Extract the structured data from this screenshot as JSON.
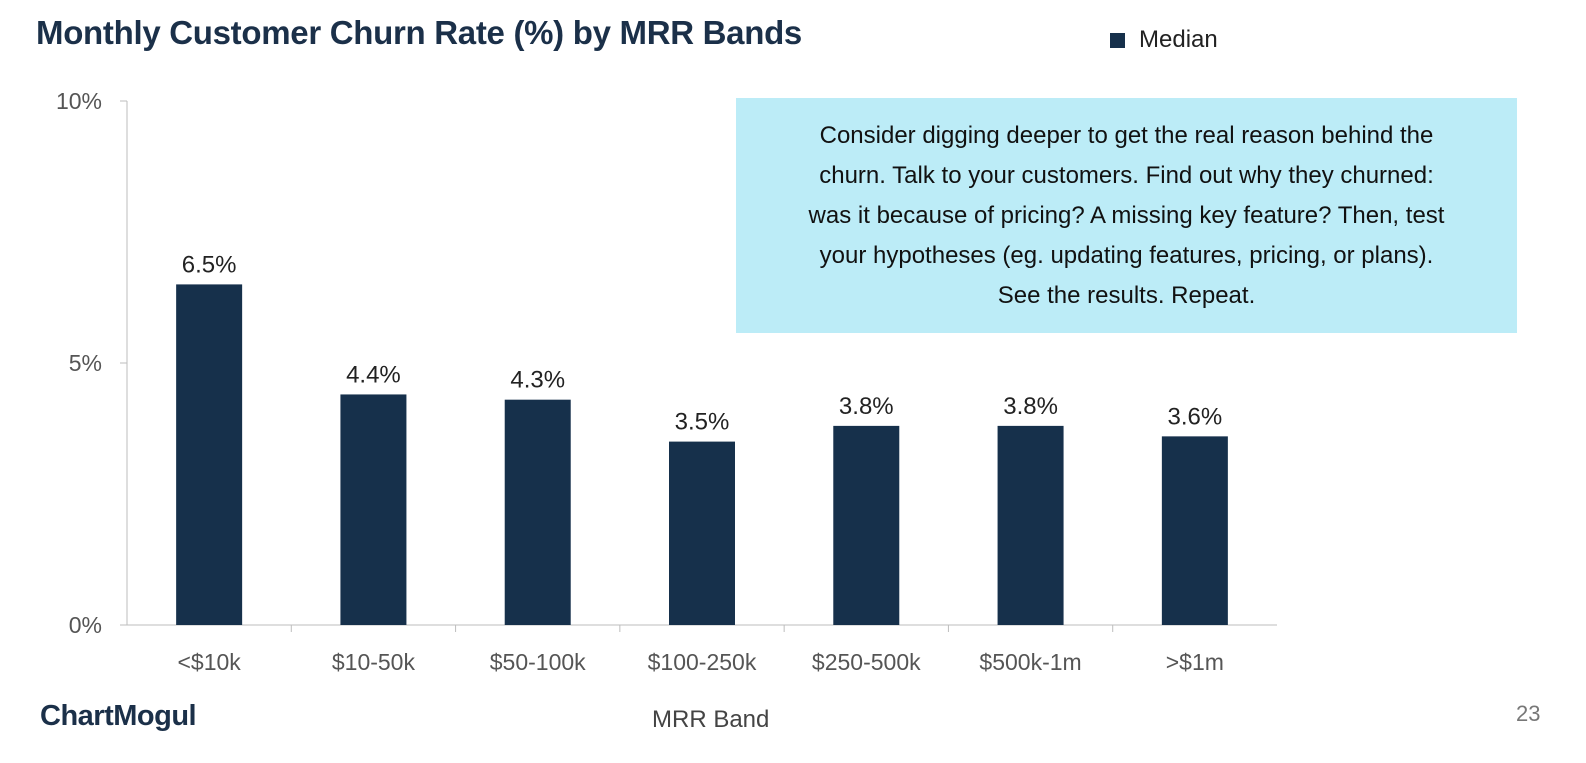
{
  "title": "Monthly Customer Churn Rate (%) by MRR Bands",
  "legend": {
    "label": "Median"
  },
  "callout": {
    "text": "Consider digging deeper to get the real reason behind the churn. Talk to your customers. Find out why they churned: was it because of pricing? A missing key feature? Then, test your hypotheses (eg. updating features, pricing, or plans). See the results. Repeat."
  },
  "brand": "ChartMogul",
  "page_number": "23",
  "colors": {
    "bar": "#16304b",
    "callout_bg": "#bcecf7",
    "title": "#1b3049"
  },
  "chart_data": {
    "type": "bar",
    "title": "Monthly Customer Churn Rate (%) by MRR Bands",
    "xlabel": "MRR Band",
    "ylabel": "",
    "categories": [
      "<$10k",
      "$10-50k",
      "$50-100k",
      "$100-250k",
      "$250-500k",
      "$500k-1m",
      ">$1m"
    ],
    "series": [
      {
        "name": "Median",
        "values": [
          6.5,
          4.4,
          4.3,
          3.5,
          3.8,
          3.8,
          3.6
        ]
      }
    ],
    "data_labels": [
      "6.5%",
      "4.4%",
      "4.3%",
      "3.5%",
      "3.8%",
      "3.8%",
      "3.6%"
    ],
    "ylim": [
      0,
      10
    ],
    "yticks": [
      0,
      5,
      10
    ],
    "ytick_labels": [
      "0%",
      "5%",
      "10%"
    ],
    "grid": false,
    "legend_position": "top-right"
  }
}
